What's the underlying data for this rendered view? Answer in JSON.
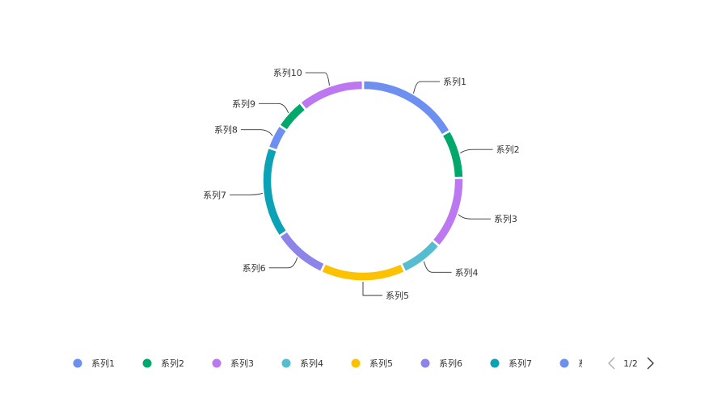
{
  "chart_data": {
    "type": "pie",
    "variant": "donut",
    "slices": [
      {
        "name": "系列1",
        "value": 17,
        "color": "#6d8ff0"
      },
      {
        "name": "系列2",
        "value": 8,
        "color": "#00a86b"
      },
      {
        "name": "系列3",
        "value": 12,
        "color": "#bb78f0"
      },
      {
        "name": "系列4",
        "value": 7,
        "color": "#56bdd0"
      },
      {
        "name": "系列5",
        "value": 14,
        "color": "#fcc200"
      },
      {
        "name": "系列6",
        "value": 9,
        "color": "#8c84e8"
      },
      {
        "name": "系列7",
        "value": 15,
        "color": "#0ca2b5"
      },
      {
        "name": "系列8",
        "value": 4,
        "color": "#6d8ff0"
      },
      {
        "name": "系列9",
        "value": 5,
        "color": "#00a86b"
      },
      {
        "name": "系列10",
        "value": 11,
        "color": "#bb78f0"
      }
    ],
    "legend": {
      "position": "bottom",
      "visible_items": [
        "系列1",
        "系列2",
        "系列3",
        "系列4",
        "系列5",
        "系列6",
        "系列7",
        "系"
      ],
      "visible_colors": [
        "#6d8ff0",
        "#00a86b",
        "#bb78f0",
        "#56bdd0",
        "#fcc200",
        "#8c84e8",
        "#0ca2b5",
        "#6d8ff0"
      ],
      "page_indicator": "1/2",
      "prev_icon": "chevron-left-icon",
      "next_icon": "chevron-right-icon"
    },
    "colors": {
      "label_text": "#333333",
      "leader_line": "#333333",
      "pager_disabled": "#aaaaaa",
      "pager_active": "#333333"
    }
  }
}
